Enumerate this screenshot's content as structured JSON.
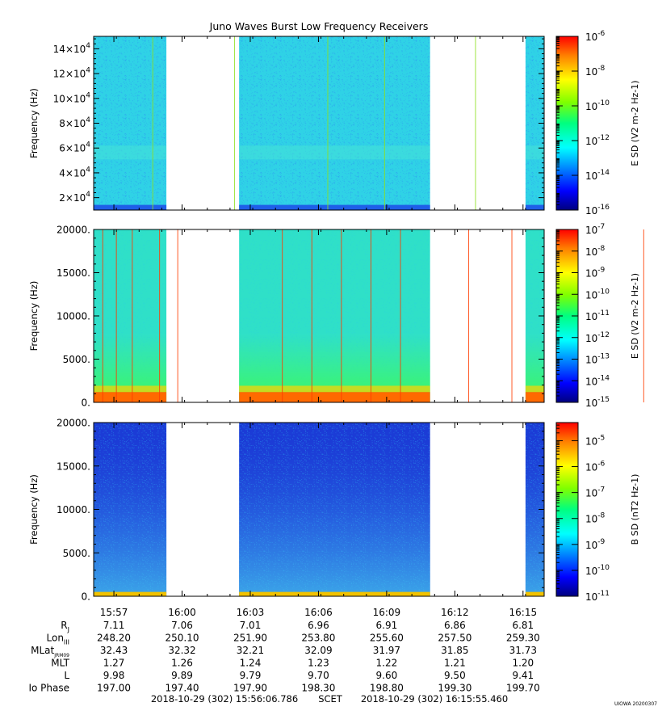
{
  "chart_data": [
    {
      "type": "heatmap",
      "title": "Juno Waves Burst Low Frequency Receivers",
      "ylabel": "Frequency (Hz)",
      "colorbar_label": "E SD (V2 m-2 Hz-1)",
      "ylim": [
        10000,
        150000
      ],
      "yticks": [
        {
          "v": 20000,
          "m": "2×10",
          "e": "4"
        },
        {
          "v": 40000,
          "m": "4×10",
          "e": "4"
        },
        {
          "v": 60000,
          "m": "6×10",
          "e": "4"
        },
        {
          "v": 80000,
          "m": "8×10",
          "e": "4"
        },
        {
          "v": 100000,
          "m": "10×10",
          "e": "4"
        },
        {
          "v": 120000,
          "m": "12×10",
          "e": "4"
        },
        {
          "v": 140000,
          "m": "14×10",
          "e": "4"
        }
      ],
      "cbar_log_range": [
        -16,
        -6
      ],
      "cbar_ticks": [
        -16,
        -14,
        -12,
        -10,
        -8,
        -6
      ],
      "background": "#2fd2e6",
      "noise": "#2a8ef2",
      "noise_level": 0.45,
      "low_band": {
        "color": "#1f5fe8",
        "height_frac": 0.03
      },
      "mid_band_freq": 62000,
      "spikes_minutes": [
        2.6,
        6.2,
        10.3,
        12.8,
        16.8,
        21.0,
        28.3
      ],
      "spike_color": "#8ee020"
    },
    {
      "type": "heatmap",
      "ylabel": "Frequency (Hz)",
      "colorbar_label": "E SD (V2 m-2 Hz-1)",
      "ylim": [
        0,
        20000
      ],
      "yticks": [
        {
          "v": 0,
          "m": "0."
        },
        {
          "v": 5000,
          "m": "5000."
        },
        {
          "v": 10000,
          "m": "10000."
        },
        {
          "v": 15000,
          "m": "15000."
        },
        {
          "v": 20000,
          "m": "20000."
        }
      ],
      "cbar_log_range": [
        -15,
        -7
      ],
      "cbar_ticks": [
        -15,
        -14,
        -13,
        -12,
        -11,
        -10,
        -9,
        -8,
        -7
      ],
      "background": "#2fe0c8",
      "noise": "#25c7e6",
      "noise_level": 0.25,
      "low_band": {
        "color": "#ff6a00",
        "height_frac": 0.06
      },
      "spikes_minutes": [
        0.4,
        1.0,
        1.7,
        2.9,
        3.7,
        8.3,
        9.6,
        10.9,
        12.2,
        13.5,
        16.5,
        18.4,
        20.4,
        24.2,
        28.0
      ],
      "spike_color": "#ff3c00"
    },
    {
      "type": "heatmap",
      "ylabel": "Frequency (Hz)",
      "colorbar_label": "B SD (nT2 Hz-1)",
      "ylim": [
        0,
        20000
      ],
      "yticks": [
        {
          "v": 0,
          "m": "0."
        },
        {
          "v": 5000,
          "m": "5000."
        },
        {
          "v": 10000,
          "m": "10000."
        },
        {
          "v": 15000,
          "m": "15000."
        },
        {
          "v": 20000,
          "m": "20000."
        }
      ],
      "cbar_log_range": [
        -11,
        -4.3
      ],
      "cbar_ticks": [
        -11,
        -10,
        -9,
        -8,
        -7,
        -6,
        -5
      ],
      "background": "#1b3bd6",
      "noise": "#27a6ee",
      "noise_level": 0.5,
      "low_band": {
        "color": "#f2c200",
        "height_frac": 0.025
      },
      "spikes_minutes": [],
      "spike_color": "#ffffff"
    }
  ],
  "time_axis": {
    "start_minute": 0,
    "end_minute": 19.82,
    "data_segments": [
      [
        0,
        3.2
      ],
      [
        6.4,
        14.8
      ],
      [
        19.0,
        19.82
      ]
    ],
    "tick_minutes": [
      0.89,
      3.89,
      6.89,
      9.89,
      12.89,
      15.89,
      18.89
    ],
    "tick_labels": [
      "15:57",
      "16:00",
      "16:03",
      "16:06",
      "16:09",
      "16:12",
      "16:15"
    ]
  },
  "ephemeris": [
    {
      "label": "R",
      "sub": "J",
      "values": [
        "7.11",
        "7.06",
        "7.01",
        "6.96",
        "6.91",
        "6.86",
        "6.81"
      ]
    },
    {
      "label": "Lon",
      "sub": "III",
      "values": [
        "248.20",
        "250.10",
        "251.90",
        "253.80",
        "255.60",
        "257.50",
        "259.30"
      ]
    },
    {
      "label": "MLat",
      "sub": "JRM09",
      "values": [
        "32.43",
        "32.32",
        "32.21",
        "32.09",
        "31.97",
        "31.85",
        "31.73"
      ]
    },
    {
      "label": "MLT",
      "sub": "",
      "values": [
        "1.27",
        "1.26",
        "1.24",
        "1.23",
        "1.22",
        "1.21",
        "1.20"
      ]
    },
    {
      "label": "L",
      "sub": "",
      "values": [
        "9.98",
        "9.89",
        "9.79",
        "9.70",
        "9.60",
        "9.50",
        "9.41"
      ]
    },
    {
      "label": "Io Phase",
      "sub": "",
      "values": [
        "197.00",
        "197.40",
        "197.90",
        "198.30",
        "198.80",
        "199.30",
        "199.70"
      ]
    }
  ],
  "footer": {
    "start": "2018-10-29 (302) 15:56:06.786",
    "scet": "SCET",
    "end": "2018-10-29 (302) 16:15:55.460",
    "credit": "UIOWA 20200307"
  }
}
